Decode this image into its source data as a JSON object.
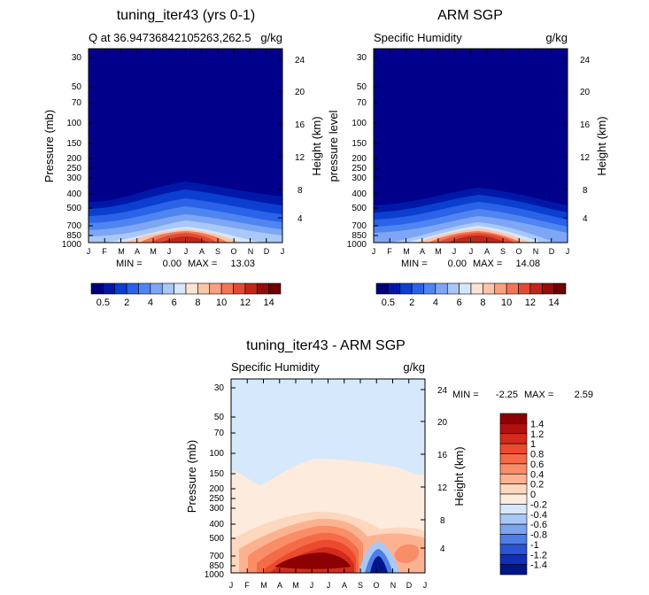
{
  "chart_data": [
    {
      "type": "heatmap",
      "title": "tuning_iter43 (yrs 0-1)",
      "subtitle_left": "Q at 36.94736842105263,262.5",
      "subtitle_right": "g/kg",
      "xlabel": "",
      "ylabel": "Pressure (mb)",
      "y2label": "Height (km)",
      "months": [
        "J",
        "F",
        "M",
        "A",
        "M",
        "J",
        "J",
        "A",
        "S",
        "O",
        "N",
        "D",
        "J"
      ],
      "pressure_ticks": [
        "30",
        "50",
        "70",
        "100",
        "150",
        "200",
        "250",
        "300",
        "400",
        "500",
        "700",
        "850",
        "1000"
      ],
      "height_ticks": [
        "24",
        "20",
        "16",
        "12",
        "8",
        "4"
      ],
      "stats": {
        "min_label": "MIN =",
        "min": "0.00",
        "max_label": "MAX =",
        "max": "13.03"
      },
      "value_range": [
        0,
        13.03
      ]
    },
    {
      "type": "heatmap",
      "title": "ARM SGP",
      "subtitle_left": "Specific Humidity",
      "subtitle_right": "g/kg",
      "xlabel": "",
      "ylabel": "pressure level",
      "y2label": "Height (km)",
      "months": [
        "J",
        "F",
        "M",
        "A",
        "M",
        "J",
        "J",
        "A",
        "S",
        "O",
        "N",
        "D",
        "J"
      ],
      "pressure_ticks": [
        "30",
        "50",
        "70",
        "100",
        "150",
        "200",
        "250",
        "300",
        "400",
        "500",
        "700",
        "850",
        "1000"
      ],
      "height_ticks": [
        "24",
        "20",
        "16",
        "12",
        "8",
        "4"
      ],
      "stats": {
        "min_label": "MIN =",
        "min": "0.00",
        "max_label": "MAX =",
        "max": "14.08"
      },
      "value_range": [
        0,
        14.08
      ]
    },
    {
      "type": "heatmap",
      "title": "tuning_iter43 - ARM SGP",
      "subtitle_left": "Specific Humidity",
      "subtitle_right": "g/kg",
      "xlabel": "",
      "ylabel": "Pressure (mb)",
      "y2label": "Height (km)",
      "months": [
        "J",
        "F",
        "M",
        "A",
        "M",
        "J",
        "J",
        "A",
        "S",
        "O",
        "N",
        "D",
        "J"
      ],
      "pressure_ticks": [
        "30",
        "50",
        "70",
        "100",
        "150",
        "200",
        "250",
        "300",
        "400",
        "500",
        "700",
        "850",
        "1000"
      ],
      "height_ticks": [
        "24",
        "20",
        "16",
        "12",
        "8",
        "4"
      ],
      "stats": {
        "min_label": "MIN =",
        "min": "-2.25",
        "max_label": "MAX =",
        "max": "2.59"
      },
      "value_range": [
        -2.25,
        2.59
      ]
    }
  ],
  "colorbar_abs": {
    "labels": [
      "0.5",
      "2",
      "4",
      "6",
      "8",
      "10",
      "12",
      "14"
    ],
    "colors": [
      "#00007f",
      "#0018a8",
      "#0a3fd0",
      "#2a62e8",
      "#4f85f0",
      "#7ea6f5",
      "#a9c8f8",
      "#d6e6fb",
      "#fde4d2",
      "#fcc5a8",
      "#f9a07e",
      "#f37556",
      "#e14a33",
      "#c02619",
      "#930d0d",
      "#6e0000"
    ]
  },
  "colorbar_diff": {
    "labels": [
      "1.4",
      "1.2",
      "1",
      "0.8",
      "0.6",
      "0.4",
      "0.2",
      "0",
      "-0.2",
      "-0.4",
      "-0.6",
      "-0.8",
      "-1",
      "-1.2",
      "-1.4"
    ],
    "colors": [
      "#8b0000",
      "#b31010",
      "#d42b1c",
      "#ec4a2f",
      "#f46b47",
      "#f98d68",
      "#fcb290",
      "#fdd7be",
      "#fdebde",
      "#d8e8fa",
      "#a9c8f6",
      "#7ca4ef",
      "#4d7ee6",
      "#2a55d6",
      "#0f2fb8",
      "#00158a"
    ]
  },
  "colors": {
    "deep_blue": "#00008b",
    "diff_background": "#d6e8fb",
    "diff_upper_warm": "#fdebde"
  }
}
